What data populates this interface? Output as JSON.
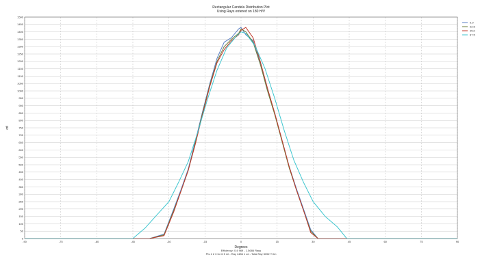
{
  "chart_data": {
    "type": "line",
    "title": "Rectangular Candela Distribution Plot",
    "subtitle": "Using Rays entered on 180 H/V",
    "xlabel": "Degrees",
    "ylabel": "cd",
    "xlim": [
      -90,
      90
    ],
    "ylim": [
      0,
      1500
    ],
    "x_ticks": [
      -90,
      -75,
      -60,
      -45,
      -30,
      -15,
      0,
      15,
      30,
      45,
      60,
      75,
      90
    ],
    "y_ticks": [
      0,
      50,
      100,
      150,
      200,
      250,
      300,
      350,
      400,
      450,
      500,
      550,
      600,
      650,
      700,
      750,
      800,
      850,
      900,
      950,
      1000,
      1050,
      1100,
      1150,
      1200,
      1250,
      1300,
      1350,
      1400,
      1450,
      1500
    ],
    "grid": true,
    "legend_position": "top-right",
    "footer": [
      "Efficiency: 0.4 969 - 1.5686 Rays",
      "Pts 1 2 3 for 6 5 ml - Ray 1486 1 cd - Total Ray 5052 Ti Im"
    ],
    "series": [
      {
        "name": "0.0",
        "color": "#5a7fc4",
        "x": [
          -90,
          -38,
          -32,
          -28,
          -25,
          -22,
          -19,
          -16,
          -13,
          -10,
          -7,
          -4,
          -1,
          0,
          2,
          5,
          8,
          11,
          14,
          17,
          20,
          23,
          26,
          29,
          32,
          90
        ],
        "y": [
          0,
          0,
          30,
          200,
          330,
          470,
          660,
          860,
          1050,
          1220,
          1330,
          1360,
          1420,
          1430,
          1380,
          1340,
          1190,
          1010,
          850,
          670,
          490,
          340,
          200,
          60,
          0,
          0
        ]
      },
      {
        "name": "22.5",
        "color": "#6b7e3a",
        "x": [
          -90,
          -38,
          -32,
          -28,
          -25,
          -22,
          -19,
          -16,
          -13,
          -10,
          -7,
          -4,
          -1,
          0,
          2,
          5,
          8,
          11,
          14,
          17,
          20,
          23,
          26,
          29,
          32,
          90
        ],
        "y": [
          0,
          0,
          25,
          190,
          320,
          460,
          650,
          850,
          1040,
          1200,
          1300,
          1350,
          1390,
          1420,
          1400,
          1330,
          1180,
          1000,
          840,
          660,
          480,
          330,
          190,
          50,
          0,
          0
        ]
      },
      {
        "name": "45.0",
        "color": "#c0392b",
        "x": [
          -90,
          -38,
          -32,
          -28,
          -25,
          -22,
          -19,
          -16,
          -13,
          -10,
          -7,
          -4,
          -1,
          0,
          2,
          5,
          8,
          11,
          14,
          17,
          20,
          23,
          26,
          29,
          32,
          90
        ],
        "y": [
          0,
          0,
          20,
          180,
          320,
          460,
          640,
          840,
          1030,
          1190,
          1280,
          1340,
          1380,
          1410,
          1430,
          1360,
          1200,
          1020,
          850,
          670,
          490,
          330,
          190,
          40,
          0,
          0
        ]
      },
      {
        "name": "67.5",
        "color": "#3fc6cf",
        "x": [
          -90,
          -45,
          -40,
          -35,
          -30,
          -26,
          -22,
          -18,
          -14,
          -10,
          -6,
          -2,
          0,
          2,
          6,
          10,
          14,
          18,
          22,
          26,
          30,
          35,
          40,
          44,
          90
        ],
        "y": [
          0,
          0,
          70,
          160,
          250,
          380,
          520,
          720,
          940,
          1140,
          1290,
          1370,
          1400,
          1390,
          1300,
          1150,
          950,
          730,
          530,
          380,
          250,
          150,
          80,
          0,
          0
        ]
      }
    ]
  }
}
